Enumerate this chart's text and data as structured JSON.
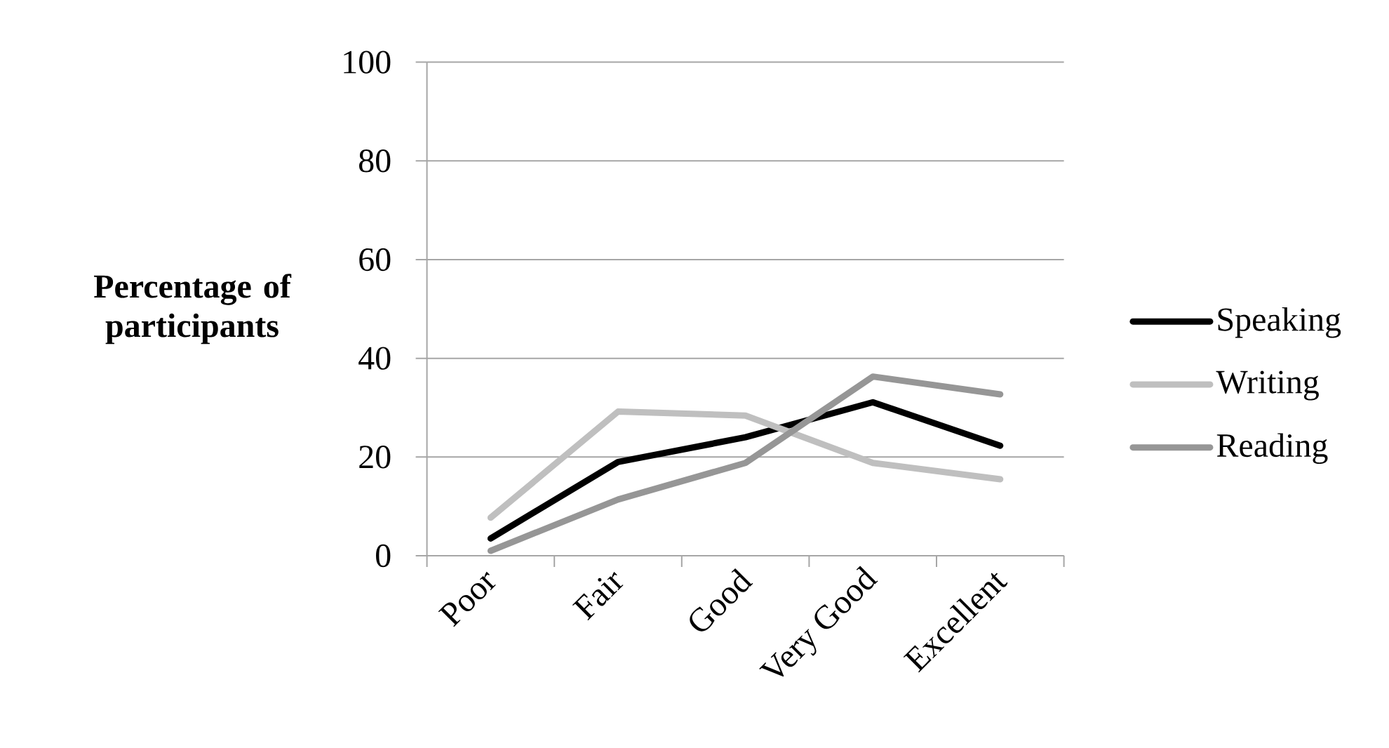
{
  "chart_data": {
    "type": "line",
    "ylabel": "Percentage of participants",
    "categories": [
      "Poor",
      "Fair",
      "Good",
      "Very Good",
      "Excellent"
    ],
    "series": [
      {
        "name": "Speaking",
        "color": "#000000",
        "values": [
          3.5,
          19,
          24,
          31.1,
          22.3
        ]
      },
      {
        "name": "Writing",
        "color": "#bfbfbf",
        "values": [
          7.7,
          29.2,
          28.4,
          18.8,
          15.5
        ]
      },
      {
        "name": "Reading",
        "color": "#969696",
        "values": [
          1,
          11.4,
          18.8,
          36.3,
          32.7
        ]
      }
    ],
    "ylim": [
      0,
      100
    ],
    "yticks": [
      0,
      20,
      40,
      60,
      80,
      100
    ],
    "grid": "y",
    "legend": "right"
  }
}
